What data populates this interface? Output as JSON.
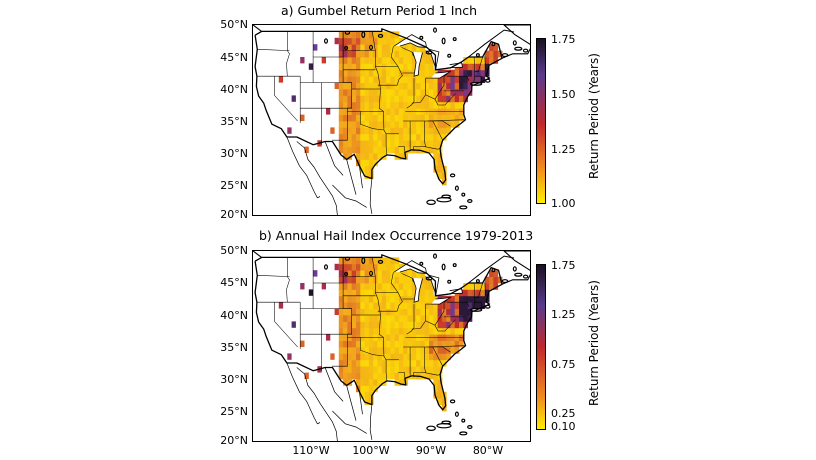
{
  "panels": [
    {
      "title": "a) Gumbel Return Period 1 Inch",
      "colorbar": {
        "label": "Return Period (Years)",
        "ticks": [
          "1.75",
          "1.50",
          "1.25",
          "1.00"
        ]
      }
    },
    {
      "title": "b) Annual Hail Index Occurrence 1979-2013",
      "colorbar": {
        "label": "Return Period (Years)",
        "ticks": [
          "1.75",
          "1.25",
          "0.75",
          "0.25",
          "0.10"
        ]
      }
    }
  ],
  "lat_ticks": [
    "50°N",
    "45°N",
    "40°N",
    "35°N",
    "30°N",
    "25°N",
    "20°N"
  ],
  "lon_ticks": [
    "110°W",
    "100°W",
    "90°W",
    "80°W"
  ],
  "colors": {
    "low": "#ffea00",
    "mid": "#f0a020",
    "high": "#c0282c",
    "very_high": "#6b3c9a",
    "max": "#1a1020"
  }
}
